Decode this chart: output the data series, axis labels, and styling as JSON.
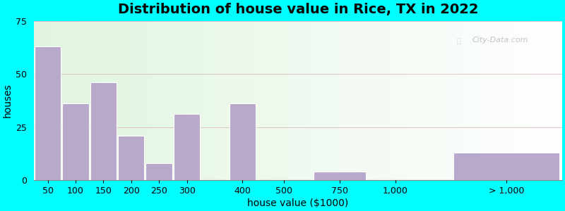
{
  "title": "Distribution of house value in Rice, TX in 2022",
  "xlabel": "house value ($1000)",
  "ylabel": "houses",
  "bar_color": "#b8a8cc",
  "bar_edgecolor": "#ffffff",
  "background_outer": "#00ffff",
  "ylim": [
    0,
    75
  ],
  "yticks": [
    0,
    25,
    50,
    75
  ],
  "values": [
    63,
    36,
    46,
    21,
    8,
    31,
    36,
    4,
    13
  ],
  "bar_lefts": [
    0,
    1,
    2,
    3,
    4,
    5,
    7,
    10,
    15
  ],
  "bar_widths": [
    1,
    1,
    1,
    1,
    1,
    1,
    1,
    2,
    4
  ],
  "xtick_positions": [
    0.5,
    1.5,
    2.5,
    3.5,
    4.5,
    5.5,
    7.5,
    9,
    11,
    13,
    17
  ],
  "xtick_labels": [
    "50",
    "100",
    "150",
    "200",
    "250",
    "300",
    "400",
    "500",
    "750",
    "1,000",
    "> 1,000"
  ],
  "title_fontsize": 14,
  "axis_fontsize": 10,
  "tick_fontsize": 9,
  "watermark": "City-Data.com"
}
